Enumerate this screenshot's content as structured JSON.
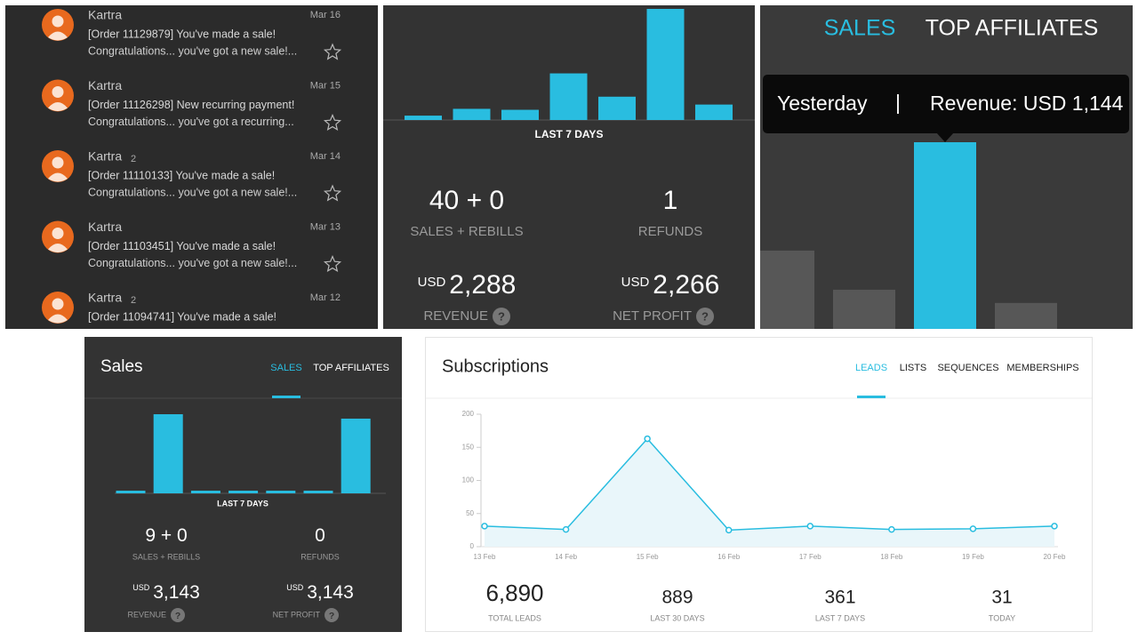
{
  "emails": [
    {
      "sender": "Kartra",
      "date": "Mar 16",
      "subject": "[Order 11129879] You've made a sale!",
      "preview": "Congratulations... you've got a new sale!..."
    },
    {
      "sender": "Kartra",
      "date": "Mar 15",
      "subject": "[Order 11126298] New recurring payment!",
      "preview": "Congratulations... you've got a recurring..."
    },
    {
      "sender": "Kartra",
      "thread_count": "2",
      "date": "Mar 14",
      "subject": "[Order 11110133] You've made a sale!",
      "preview": "Congratulations... you've got a new sale!..."
    },
    {
      "sender": "Kartra",
      "date": "Mar 13",
      "subject": "[Order 11103451] You've made a sale!",
      "preview": "Congratulations... you've got a new sale!..."
    },
    {
      "sender": "Kartra",
      "thread_count": "2",
      "date": "Mar 12",
      "subject": "[Order 11094741] You've made a sale!"
    }
  ],
  "sales_widget": {
    "chart": {
      "type": "bar",
      "values": [
        45,
        115,
        105,
        480,
        240,
        1144,
        159
      ],
      "color": "#29bde0"
    },
    "period": "LAST 7 DAYS",
    "help_icon": "?",
    "stats": [
      {
        "value": "40 + 0",
        "label": "SALES + REBILLS"
      },
      {
        "value": "1",
        "label": "REFUNDS"
      },
      {
        "currency": "USD",
        "value": "2,288",
        "label": "REVENUE"
      },
      {
        "currency": "USD",
        "value": "2,266",
        "label": "NET PROFIT"
      }
    ]
  },
  "sales_zoom": {
    "tabs": [
      "SALES",
      "TOP AFFILIATES"
    ],
    "tooltip": {
      "period": "Yesterday",
      "separator": "|",
      "text": "Revenue: USD 1,144"
    }
  },
  "sales_card": {
    "title": "Sales",
    "tabs": [
      "SALES",
      "TOP AFFILIATES"
    ],
    "chart": {
      "type": "bar",
      "values": [
        50,
        1488,
        50,
        50,
        50,
        50,
        1405
      ],
      "color": "#29bde0"
    },
    "period": "LAST 7 DAYS",
    "help_icon": "?",
    "stats": [
      {
        "value": "9 + 0",
        "label": "SALES + REBILLS"
      },
      {
        "value": "0",
        "label": "REFUNDS"
      },
      {
        "currency": "USD",
        "value": "3,143",
        "label": "REVENUE"
      },
      {
        "currency": "USD",
        "value": "3,143",
        "label": "NET PROFIT"
      }
    ]
  },
  "subscriptions": {
    "title": "Subscriptions",
    "tabs": [
      "LEADS",
      "LISTS",
      "SEQUENCES",
      "MEMBERSHIPS"
    ],
    "chart": {
      "type": "line",
      "categories": [
        "13 Feb",
        "14 Feb",
        "15 Feb",
        "16 Feb",
        "17 Feb",
        "18 Feb",
        "19 Feb",
        "20 Feb"
      ],
      "values": [
        31,
        26,
        163,
        25,
        31,
        26,
        27,
        31
      ],
      "color": "#29bde0",
      "ylim": [
        0,
        200
      ],
      "yticks": [
        0,
        50,
        100,
        150,
        200
      ]
    },
    "stats": [
      {
        "value": "6,890",
        "label": "TOTAL LEADS"
      },
      {
        "value": "889",
        "label": "LAST 30 DAYS"
      },
      {
        "value": "361",
        "label": "LAST 7 DAYS"
      },
      {
        "value": "31",
        "label": "TODAY"
      }
    ]
  }
}
